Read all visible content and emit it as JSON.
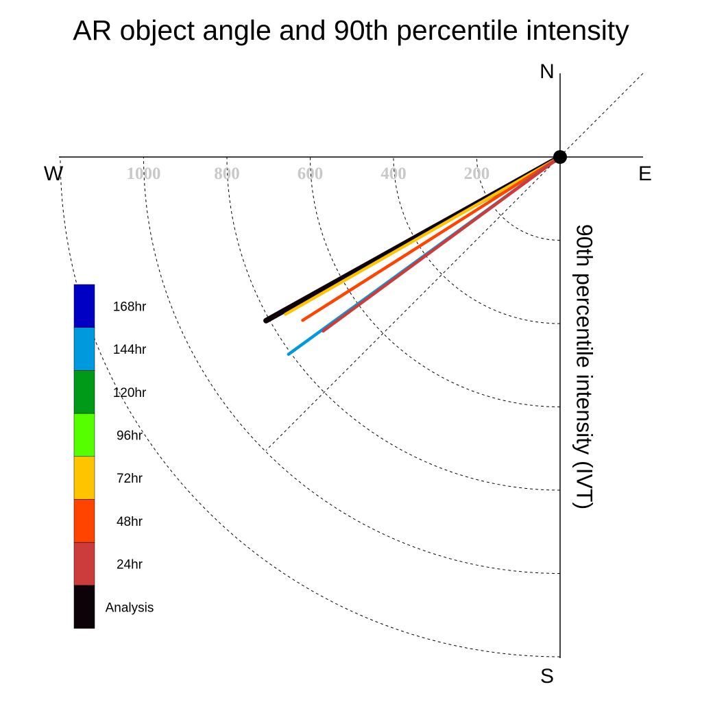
{
  "chart_data": {
    "type": "polar-vector",
    "title": "AR object angle and 90th percentile intensity",
    "ylabel": "90th percentile intensity (IVT)",
    "compass": {
      "north": "N",
      "south": "S",
      "east": "E",
      "west": "W"
    },
    "radial_ticks": [
      1000,
      800,
      600,
      400,
      200
    ],
    "radial_ticks_extra": [
      1200
    ],
    "rmax": 1200,
    "series": [
      {
        "name": "Analysis",
        "color": "#0d0208",
        "angle_deg_from_north": 240.9,
        "intensity": 808
      },
      {
        "name": "72hr",
        "color": "#ffc400",
        "angle_deg_from_north": 240.2,
        "intensity": 760
      },
      {
        "name": "48hr",
        "color": "#ff4400",
        "angle_deg_from_north": 237.6,
        "intensity": 732
      },
      {
        "name": "144hr",
        "color": "#0099dd",
        "angle_deg_from_north": 234.0,
        "intensity": 806
      },
      {
        "name": "24hr",
        "color": "#cc3c3c",
        "angle_deg_from_north": 233.7,
        "intensity": 706
      }
    ],
    "legend": [
      {
        "label": "168hr",
        "color": "#0000c4"
      },
      {
        "label": "144hr",
        "color": "#0099dd"
      },
      {
        "label": "120hr",
        "color": "#009a18"
      },
      {
        "label": "96hr",
        "color": "#55ff00"
      },
      {
        "label": "72hr",
        "color": "#ffc400"
      },
      {
        "label": "48hr",
        "color": "#ff4400"
      },
      {
        "label": "24hr",
        "color": "#cc3c3c"
      },
      {
        "label": "Analysis",
        "color": "#0d0208"
      }
    ]
  }
}
